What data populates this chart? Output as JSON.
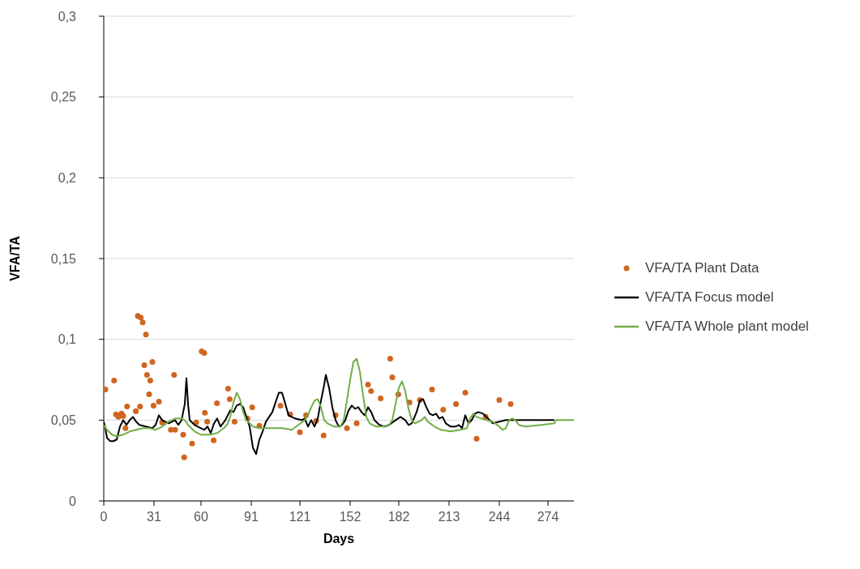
{
  "chart_data": {
    "type": "line",
    "xlabel": "Days",
    "ylabel": "VFA/TA",
    "xlim": [
      0,
      290
    ],
    "xticks": [
      0,
      31,
      60,
      91,
      121,
      152,
      182,
      213,
      244,
      274
    ],
    "ylim": [
      0,
      0.3
    ],
    "yticks": [
      0,
      {
        "value": 0.05,
        "label": "0,05"
      },
      {
        "value": 0.1,
        "label": "0,1"
      },
      {
        "value": 0.15,
        "label": "0,15"
      },
      {
        "value": 0.2,
        "label": "0,2"
      },
      {
        "value": 0.25,
        "label": "0,25"
      },
      {
        "value": 0.3,
        "label": "0,3"
      }
    ],
    "grid": "y",
    "legend": "right",
    "series": [
      {
        "name": "VFA/TA Plant Data",
        "type": "scatter",
        "color": "#d0651f",
        "marker": "circle",
        "x": [
          1,
          6.4,
          7.5,
          10,
          11,
          12,
          9,
          13.4,
          14.4,
          19.8,
          21,
          22.8,
          24,
          26,
          25,
          30,
          26.7,
          28.7,
          28,
          22.4,
          30.7,
          34,
          36,
          43.4,
          41.4,
          44,
          49,
          49.6,
          54.5,
          57,
          60.4,
          62,
          62.4,
          63.8,
          67.8,
          69.8,
          76.7,
          77.7,
          80.7,
          88.6,
          91.6,
          96,
          109,
          115,
          121,
          124.8,
          131,
          135.6,
          143,
          150,
          156,
          163,
          164.9,
          170.8,
          176.7,
          178,
          181.7,
          188.6,
          195,
          202.5,
          209.4,
          217.3,
          223,
          230,
          235.6,
          244,
          251
        ],
        "values": [
          0.069,
          0.0745,
          0.0535,
          0.053,
          0.054,
          0.0525,
          0.052,
          0.045,
          0.0585,
          0.0555,
          0.1145,
          0.1135,
          0.1105,
          0.103,
          0.084,
          0.086,
          0.078,
          0.0745,
          0.066,
          0.0585,
          0.059,
          0.0615,
          0.0485,
          0.078,
          0.044,
          0.044,
          0.041,
          0.027,
          0.0355,
          0.0485,
          0.0925,
          0.0915,
          0.0545,
          0.049,
          0.0375,
          0.0605,
          0.0695,
          0.063,
          0.049,
          0.051,
          0.058,
          0.0465,
          0.059,
          0.0535,
          0.0425,
          0.053,
          0.0495,
          0.0405,
          0.053,
          0.045,
          0.048,
          0.072,
          0.068,
          0.0635,
          0.088,
          0.0765,
          0.066,
          0.061,
          0.0625,
          0.069,
          0.0565,
          0.06,
          0.067,
          0.0385,
          0.052,
          0.0625,
          0.06
        ]
      },
      {
        "name": "VFA/TA Focus model",
        "type": "line",
        "color": "#000000",
        "marker": "none",
        "line_style": "solid",
        "x": [
          0,
          1,
          2,
          4,
          6,
          8,
          10,
          12,
          14,
          16,
          18,
          20,
          22,
          26,
          30,
          32,
          34,
          36,
          40,
          44,
          46,
          48,
          50,
          51,
          52,
          53,
          56,
          60,
          62,
          64,
          66,
          68,
          70,
          72,
          75,
          78,
          80,
          82,
          84,
          86,
          88,
          90,
          92,
          94,
          96,
          98,
          100,
          102,
          104,
          106,
          108,
          110,
          112,
          114,
          118,
          122,
          124,
          126,
          128,
          130,
          132,
          134,
          136,
          137,
          139,
          141,
          143,
          145,
          147,
          149,
          151,
          153,
          155,
          157,
          159,
          161,
          163,
          165,
          167,
          170,
          173,
          176,
          180,
          183,
          186,
          188,
          190,
          193,
          195,
          197,
          199,
          201,
          203,
          205,
          207,
          209,
          211,
          214,
          217,
          219,
          221,
          223,
          225,
          227,
          229,
          231,
          234,
          236,
          238,
          240,
          244,
          248,
          270,
          278
        ],
        "values": [
          0.049,
          0.045,
          0.039,
          0.037,
          0.037,
          0.038,
          0.046,
          0.05,
          0.047,
          0.05,
          0.052,
          0.049,
          0.047,
          0.046,
          0.045,
          0.047,
          0.053,
          0.05,
          0.048,
          0.05,
          0.047,
          0.05,
          0.06,
          0.076,
          0.06,
          0.05,
          0.047,
          0.045,
          0.044,
          0.046,
          0.042,
          0.048,
          0.051,
          0.046,
          0.05,
          0.056,
          0.055,
          0.059,
          0.06,
          0.058,
          0.052,
          0.046,
          0.033,
          0.029,
          0.038,
          0.043,
          0.049,
          0.052,
          0.055,
          0.061,
          0.067,
          0.067,
          0.06,
          0.053,
          0.051,
          0.05,
          0.051,
          0.046,
          0.05,
          0.046,
          0.051,
          0.062,
          0.072,
          0.078,
          0.07,
          0.058,
          0.05,
          0.046,
          0.047,
          0.05,
          0.056,
          0.059,
          0.057,
          0.058,
          0.055,
          0.053,
          0.058,
          0.055,
          0.05,
          0.047,
          0.046,
          0.047,
          0.05,
          0.052,
          0.05,
          0.047,
          0.048,
          0.055,
          0.062,
          0.063,
          0.058,
          0.054,
          0.053,
          0.054,
          0.051,
          0.052,
          0.048,
          0.046,
          0.046,
          0.047,
          0.045,
          0.053,
          0.048,
          0.05,
          0.054,
          0.055,
          0.054,
          0.052,
          0.05,
          0.048,
          0.049,
          0.05,
          0.05,
          0.05
        ]
      },
      {
        "name": "VFA/TA Whole plant model",
        "type": "line",
        "color": "#70ad47",
        "marker": "none",
        "line_style": "solid",
        "x": [
          0,
          2,
          5,
          8,
          12,
          16,
          20,
          24,
          28,
          32,
          36,
          40,
          44,
          48,
          50,
          52,
          56,
          60,
          66,
          70,
          74,
          76,
          78,
          80,
          82,
          84,
          86,
          88,
          92,
          96,
          100,
          110,
          116,
          120,
          124,
          126,
          128,
          130,
          132,
          134,
          136,
          138,
          142,
          146,
          148,
          150,
          152,
          154,
          156,
          158,
          160,
          162,
          164,
          168,
          172,
          176,
          178,
          180,
          182,
          184,
          186,
          188,
          190,
          192,
          196,
          198,
          200,
          204,
          208,
          214,
          220,
          224,
          226,
          228,
          230,
          236,
          240,
          244,
          246,
          248,
          250,
          252,
          254,
          256,
          260,
          270,
          278,
          279,
          290
        ],
        "values": [
          0.047,
          0.044,
          0.041,
          0.04,
          0.041,
          0.043,
          0.044,
          0.045,
          0.045,
          0.044,
          0.046,
          0.049,
          0.051,
          0.051,
          0.05,
          0.047,
          0.043,
          0.041,
          0.041,
          0.042,
          0.045,
          0.047,
          0.052,
          0.061,
          0.067,
          0.063,
          0.055,
          0.05,
          0.046,
          0.045,
          0.045,
          0.045,
          0.044,
          0.047,
          0.05,
          0.053,
          0.058,
          0.062,
          0.063,
          0.058,
          0.05,
          0.048,
          0.046,
          0.046,
          0.05,
          0.062,
          0.075,
          0.086,
          0.088,
          0.08,
          0.065,
          0.052,
          0.048,
          0.046,
          0.046,
          0.047,
          0.05,
          0.06,
          0.07,
          0.074,
          0.068,
          0.057,
          0.05,
          0.048,
          0.05,
          0.052,
          0.049,
          0.046,
          0.044,
          0.043,
          0.044,
          0.045,
          0.051,
          0.054,
          0.052,
          0.05,
          0.049,
          0.046,
          0.044,
          0.045,
          0.05,
          0.051,
          0.05,
          0.047,
          0.046,
          0.047,
          0.048,
          0.05,
          0.05
        ]
      }
    ]
  }
}
